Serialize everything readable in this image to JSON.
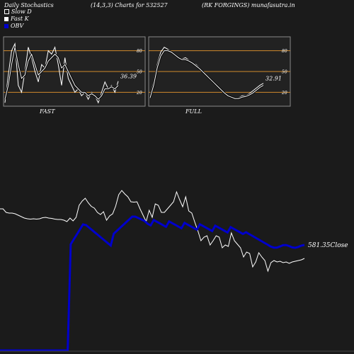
{
  "header": {
    "left": "Daily Stochastics",
    "params": "(14,3,3) Charts for 532527",
    "right": "(RK FORGINGS) munafasutra.in"
  },
  "legend": [
    {
      "label": "Slow  D",
      "color": "#ffffff",
      "icon": "outlined-square-icon"
    },
    {
      "label": "Fast K",
      "color": "#ffffff",
      "icon": "filled-square-icon"
    },
    {
      "label": "OBV",
      "color": "#0000cc",
      "icon": "filled-square-icon"
    }
  ],
  "colors": {
    "background": "#1b1b1b",
    "panel_bg": "#222222",
    "panel_border": "#888888",
    "level_line": "#d08a2c",
    "price_line": "#ffffff",
    "obv_line": "#0000cc"
  },
  "chart_data": [
    {
      "type": "line",
      "title": "FAST",
      "ylim": [
        0,
        100
      ],
      "yticks": [
        "80",
        "50",
        "20"
      ],
      "last_value_label": "36.39",
      "series": [
        {
          "values": [
            5,
            45,
            80,
            90,
            30,
            20,
            50,
            85,
            70,
            50,
            35,
            60,
            55,
            80,
            75,
            85,
            60,
            30,
            70,
            40,
            30,
            20,
            25,
            15,
            20,
            10,
            20,
            15,
            5,
            20,
            35,
            25,
            30,
            20,
            36
          ]
        },
        {
          "values": [
            10,
            30,
            60,
            85,
            60,
            40,
            45,
            65,
            75,
            60,
            45,
            50,
            55,
            65,
            70,
            75,
            70,
            55,
            60,
            50,
            40,
            30,
            25,
            20,
            20,
            15,
            18,
            15,
            10,
            15,
            25,
            25,
            28,
            25,
            30
          ]
        }
      ]
    },
    {
      "type": "line",
      "title": "FULL",
      "ylim": [
        0,
        100
      ],
      "yticks": [
        "80",
        "50",
        "20"
      ],
      "last_value_label": "32.91",
      "series": [
        {
          "values": [
            15,
            35,
            60,
            78,
            85,
            82,
            78,
            75,
            70,
            68,
            70,
            66,
            62,
            60,
            55,
            50,
            45,
            40,
            35,
            30,
            25,
            20,
            15,
            12,
            10,
            12,
            15,
            15,
            18,
            22,
            26,
            30,
            33
          ]
        },
        {
          "values": [
            12,
            30,
            55,
            72,
            80,
            80,
            78,
            74,
            70,
            67,
            67,
            65,
            62,
            58,
            54,
            49,
            44,
            39,
            34,
            29,
            24,
            19,
            15,
            13,
            11,
            11,
            13,
            14,
            16,
            19,
            23,
            27,
            30
          ]
        }
      ]
    },
    {
      "type": "line",
      "title": "",
      "last_value_label": "581.35Close",
      "series": [
        {
          "values": [
            40,
            40,
            30,
            28,
            28,
            26,
            22,
            18,
            14,
            12,
            11,
            12,
            11,
            12,
            15,
            16,
            14,
            13,
            11,
            10,
            10,
            8,
            4,
            14,
            6,
            16,
            50,
            62,
            70,
            57,
            47,
            42,
            30,
            24,
            32,
            8,
            20,
            26,
            48,
            80,
            92,
            82,
            74,
            60,
            59,
            60,
            40,
            22,
            4,
            36,
            16,
            54,
            50,
            30,
            30,
            40,
            50,
            60,
            88,
            66,
            46,
            74,
            34,
            28,
            2,
            -22,
            -50,
            -40,
            -36,
            -62,
            -50,
            -36,
            -40,
            -70,
            -62,
            -66,
            -28,
            -50,
            -60,
            -70,
            -96,
            -82,
            -86,
            -124,
            -110,
            -84,
            -96,
            -106,
            -136,
            -112,
            -106,
            -110,
            -108,
            -112,
            -110,
            -114,
            -110,
            -108,
            -106,
            -104,
            -100
          ]
        },
        {
          "values": [
            -80,
            -80,
            -80,
            -80,
            -80,
            -80,
            -80,
            -80,
            -80,
            -80,
            -80,
            -80,
            -80,
            -80,
            -80,
            -80,
            -80,
            -80,
            -80,
            -80,
            -80,
            -80,
            -80,
            -80,
            -80,
            -80,
            -80,
            -80,
            -80,
            -80,
            -80,
            -80,
            -80,
            -80,
            -80,
            -80,
            -80,
            -80,
            -80,
            -80,
            -80,
            -80,
            -80,
            -80,
            -80,
            -80,
            -80,
            -80,
            -80,
            -80,
            -80,
            -80,
            -80,
            -80,
            -80,
            -80,
            -80,
            -80,
            -80,
            -80,
            -80,
            -80,
            -80,
            -80,
            -80,
            -80,
            -80,
            -80,
            -80,
            -80,
            -80,
            -80,
            -80,
            -80,
            -80,
            -80,
            -80,
            -80,
            -80,
            -80,
            -80,
            -80,
            -80,
            -80,
            -80,
            -80,
            -80,
            -80,
            -80,
            -80,
            -80,
            -80,
            -80,
            -80,
            -80,
            -80,
            -80,
            -80,
            -80,
            -80
          ]
        }
      ]
    }
  ]
}
